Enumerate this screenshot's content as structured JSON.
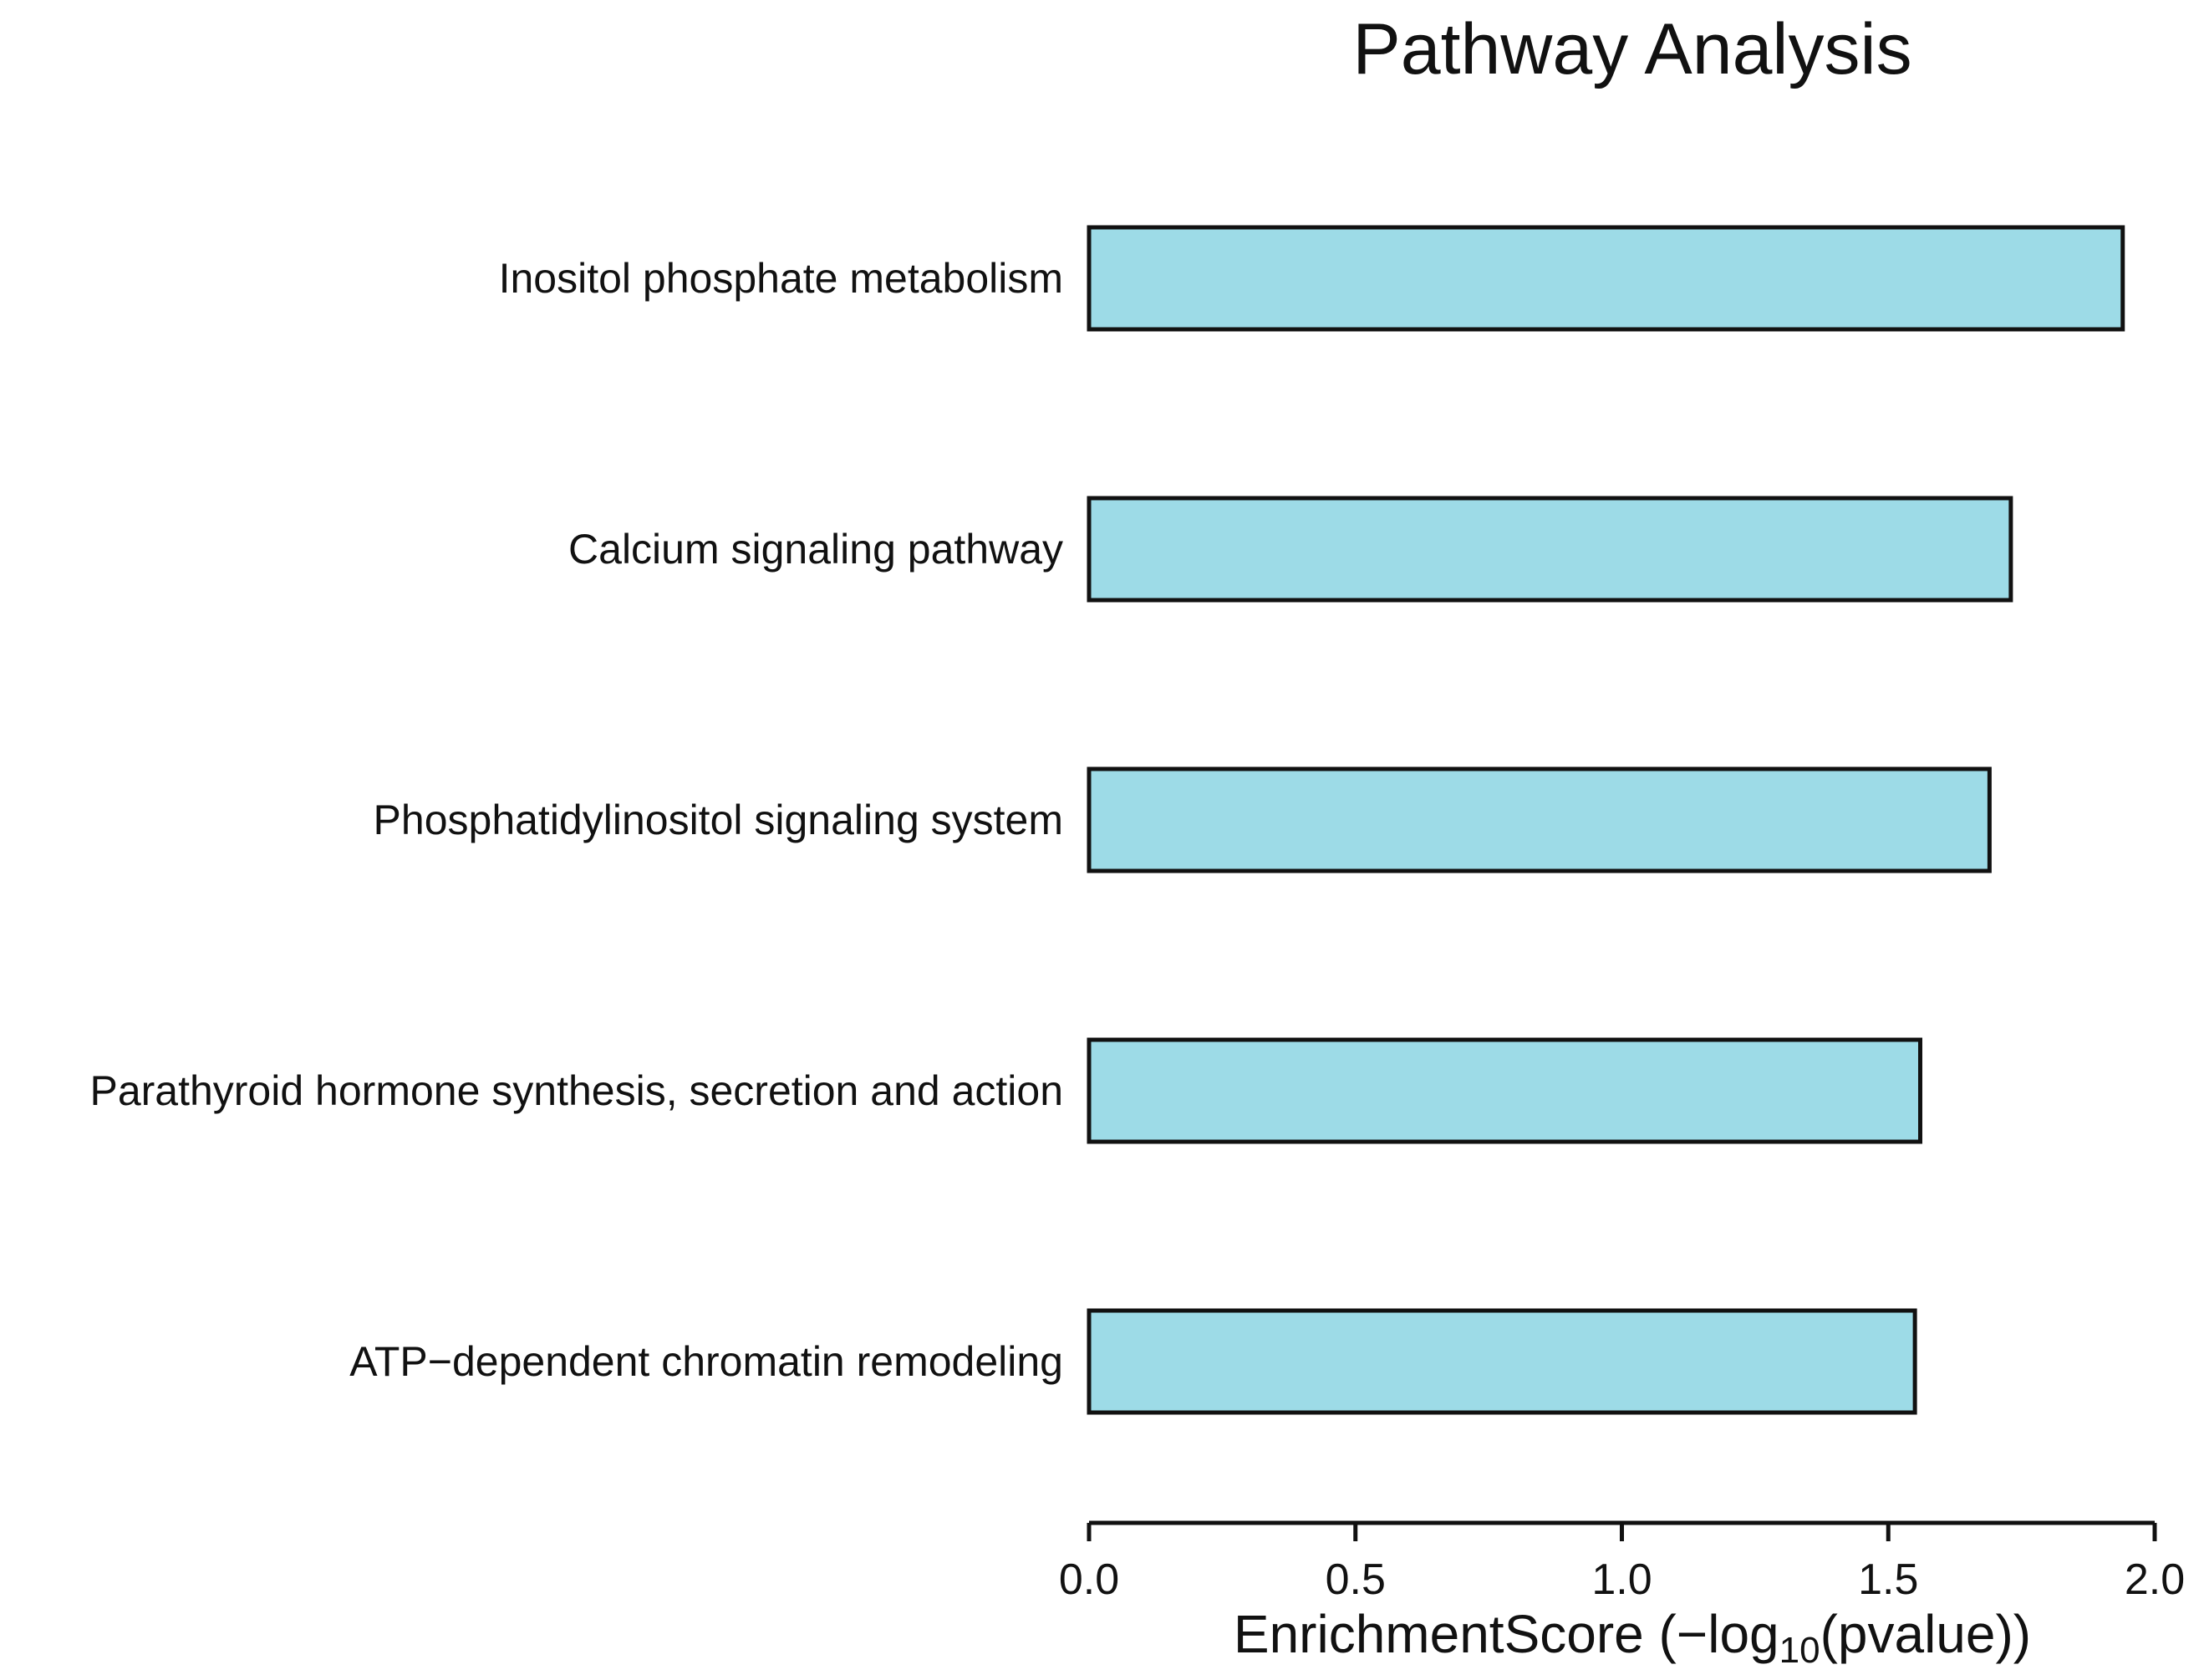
{
  "chart_data": {
    "type": "bar",
    "orientation": "horizontal",
    "title": "Pathway Analysis",
    "categories": [
      "Inositol phosphate metabolism",
      "Calcium signaling pathway",
      "Phosphatidylinositol signaling system",
      "Parathyroid hormone synthesis, secretion and action",
      "ATP−dependent chromatin remodeling"
    ],
    "values": [
      1.94,
      1.73,
      1.69,
      1.56,
      1.55
    ],
    "xlabel": {
      "prefix": "EnrichmentScore (−log",
      "subscript": "10",
      "suffix": "(pvalue))"
    },
    "ylabel": "",
    "xlim": [
      0,
      2.0
    ],
    "x_ticks": [
      0.0,
      0.5,
      1.0,
      1.5,
      2.0
    ],
    "x_tick_labels": [
      "0.0",
      "0.5",
      "1.0",
      "1.5",
      "2.0"
    ],
    "grid": false,
    "legend": "none",
    "colors": {
      "bar_fill": "#9ddbe7",
      "bar_stroke": "#111111",
      "axis": "#111111"
    }
  }
}
